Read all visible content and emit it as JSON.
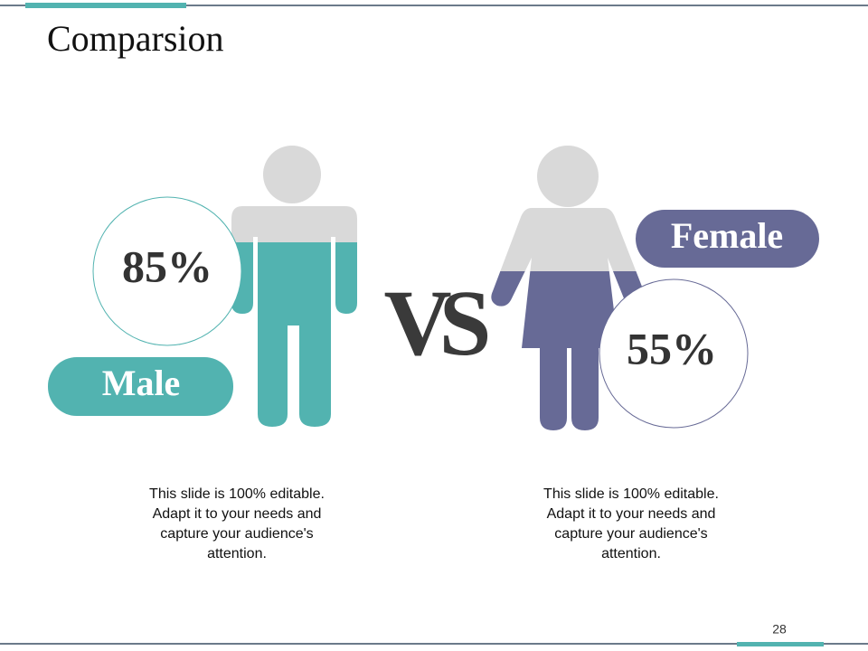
{
  "title": "Comparsion",
  "vs": "VS",
  "male": {
    "label": "Male",
    "percent": "85%",
    "description": [
      "This slide is 100% editable.",
      "Adapt it to your needs and",
      "capture your audience's",
      "attention."
    ]
  },
  "female": {
    "label": "Female",
    "percent": "55%",
    "description": [
      "This slide is 100% editable.",
      "Adapt it to your needs and",
      "capture your audience's",
      "attention."
    ]
  },
  "page_number": "28"
}
